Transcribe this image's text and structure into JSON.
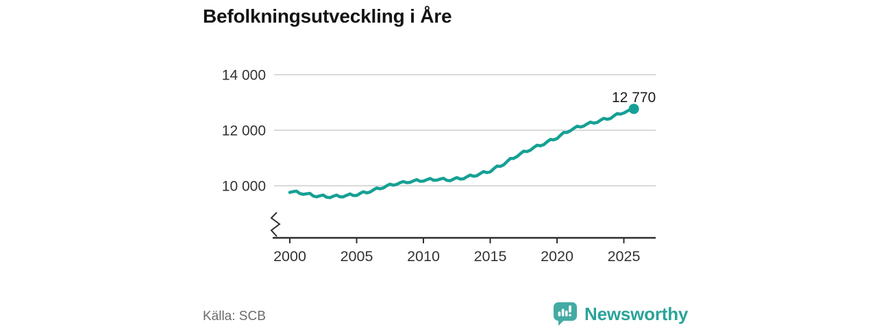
{
  "header": {
    "title": "Befolkningsutveckling i Åre"
  },
  "chart_data": {
    "type": "line",
    "title": "Befolkningsutveckling i Åre",
    "x_start": 2000,
    "x_step": 0.25,
    "values": [
      9760,
      9790,
      9805,
      9720,
      9690,
      9712,
      9725,
      9632,
      9600,
      9637,
      9665,
      9587,
      9570,
      9622,
      9665,
      9602,
      9600,
      9657,
      9705,
      9647,
      9650,
      9722,
      9785,
      9742,
      9770,
      9850,
      9920,
      9890,
      9920,
      10000,
      10060,
      10020,
      10050,
      10110,
      10150,
      10110,
      10120,
      10175,
      10220,
      10160,
      10165,
      10218,
      10262,
      10200,
      10200,
      10240,
      10270,
      10195,
      10180,
      10242,
      10295,
      10242,
      10250,
      10322,
      10385,
      10342,
      10360,
      10440,
      10510,
      10475,
      10500,
      10607,
      10705,
      10697,
      10750,
      10870,
      10980,
      10985,
      11050,
      11152,
      11245,
      11232,
      11280,
      11375,
      11460,
      11440,
      11480,
      11580,
      11670,
      11655,
      11700,
      11815,
      11920,
      11920,
      11980,
      12067,
      12145,
      12117,
      12150,
      12227,
      12295,
      12257,
      12280,
      12360,
      12430,
      12395,
      12420,
      12515,
      12600,
      12580,
      12620,
      12690,
      12745,
      12770
    ],
    "end_value": 12770,
    "end_label": "12 770",
    "y_ticks": [
      {
        "v": 14000,
        "label": "14 000"
      },
      {
        "v": 12000,
        "label": "12 000"
      },
      {
        "v": 10000,
        "label": "10 000"
      }
    ],
    "x_ticks": [
      {
        "v": 2000,
        "label": "2000"
      },
      {
        "v": 2005,
        "label": "2005"
      },
      {
        "v": 2010,
        "label": "2010"
      },
      {
        "v": 2015,
        "label": "2015"
      },
      {
        "v": 2020,
        "label": "2020"
      },
      {
        "v": 2025,
        "label": "2025"
      }
    ],
    "axis_break": true,
    "grid": "horizontal-only",
    "legend": "none",
    "xlabel": "",
    "ylabel": "",
    "colors": {
      "line": "#16a095",
      "grid": "#d9d9d9",
      "axis": "#2e2e2e",
      "tick_label": "#333333",
      "end_label": "#1a1a1a"
    }
  },
  "footer": {
    "source_label": "Källa: SCB",
    "brand": {
      "name": "Newsworthy",
      "icon": "newsworthy-speech-bubble-barchart-icon",
      "icon_color": "#43aba3",
      "text_color": "#2aa39a"
    }
  }
}
